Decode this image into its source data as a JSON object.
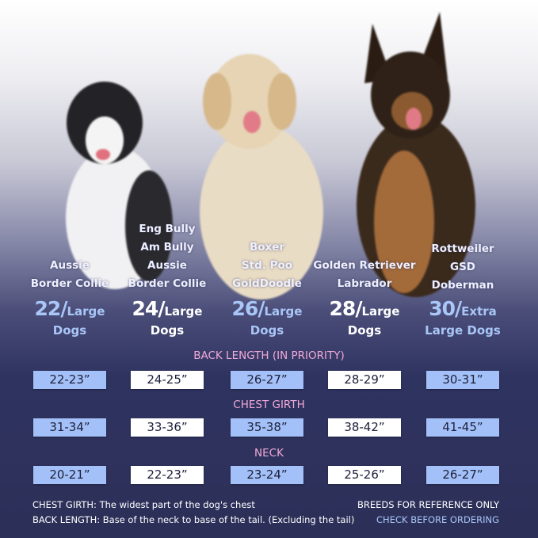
{
  "columns": [
    {
      "breeds": [
        "Aussie",
        "Border Collie"
      ],
      "size_number": "22/",
      "size_label_1": "Large",
      "size_label_2": "Dogs",
      "accent": "blue"
    },
    {
      "breeds": [
        "Eng Bully",
        "Am Bully",
        "Aussie",
        "Border Collie"
      ],
      "size_number": "24/",
      "size_label_1": "Large",
      "size_label_2": "Dogs",
      "accent": "white"
    },
    {
      "breeds": [
        "Boxer",
        "Std. Poo",
        "GoldDoodle"
      ],
      "size_number": "26/",
      "size_label_1": "Large",
      "size_label_2": "Dogs",
      "accent": "blue"
    },
    {
      "breeds": [
        "Golden Retriever",
        "Labrador"
      ],
      "size_number": "28/",
      "size_label_1": "Large",
      "size_label_2": "Dogs",
      "accent": "white"
    },
    {
      "breeds": [
        "Rottweiler",
        "GSD",
        "Doberman"
      ],
      "size_number": "30/",
      "size_label_1": "Extra",
      "size_label_2": "Large Dogs",
      "accent": "blue"
    }
  ],
  "sections": [
    {
      "title": "BACK LENGTH (IN PRIORITY)",
      "values": [
        "22-23”",
        "24-25”",
        "26-27”",
        "28-29”",
        "30-31”"
      ]
    },
    {
      "title": "CHEST GIRTH",
      "values": [
        "31-34”",
        "33-36”",
        "35-38”",
        "38-42”",
        "41-45”"
      ]
    },
    {
      "title": "NECK",
      "values": [
        "20-21”",
        "22-23”",
        "23-24”",
        "25-26”",
        "26-27”"
      ]
    }
  ],
  "footer": {
    "chest_term": "CHEST GIRTH:",
    "chest_def": " The widest part of the dog's chest",
    "back_term": "BACK LENGTH:",
    "back_def": " Base of the neck to base of the tail. (Excluding the tail)",
    "note_1": "BREEDS FOR REFERENCE ONLY",
    "note_2": "CHECK BEFORE ORDERING"
  },
  "colors": {
    "accent_blue": "#a3c1f8",
    "header_pink": "#f2a9d8",
    "background_navy": "#2c3058"
  },
  "images": [
    "border-collie-photo",
    "golden-retriever-photo",
    "german-shepherd-photo"
  ]
}
